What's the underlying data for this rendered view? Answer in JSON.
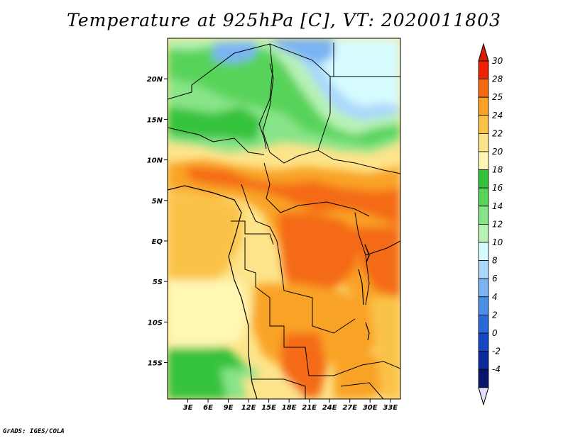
{
  "title": "Temperature at 925hPa [C], VT: 2020011803",
  "footer": "GrADS: IGES/COLA",
  "map": {
    "lat_ticks": [
      "20N",
      "15N",
      "10N",
      "5N",
      "EQ",
      "5S",
      "10S",
      "15S"
    ],
    "lat_values": [
      20,
      15,
      10,
      5,
      0,
      -5,
      -10,
      -15
    ],
    "lon_ticks": [
      "3E",
      "6E",
      "9E",
      "12E",
      "15E",
      "18E",
      "21E",
      "24E",
      "27E",
      "30E",
      "33E"
    ],
    "lon_values": [
      3,
      6,
      9,
      12,
      15,
      18,
      21,
      24,
      27,
      30,
      33
    ],
    "lon_range": [
      0,
      34.5
    ],
    "lat_range": [
      -19.5,
      25
    ]
  },
  "colorbar": {
    "labels": [
      "30",
      "28",
      "25",
      "24",
      "22",
      "20",
      "18",
      "16",
      "14",
      "12",
      "10",
      "8",
      "6",
      "4",
      "2",
      "0",
      "-2",
      "-4"
    ],
    "colors": [
      "#ee2200",
      "#f46a12",
      "#f9a326",
      "#fbc24a",
      "#fde48b",
      "#fff7b4",
      "#34c23c",
      "#59d35a",
      "#88e488",
      "#b8f2b5",
      "#d6fbff",
      "#abd8fb",
      "#7ab4f2",
      "#4c8fe6",
      "#2a6ad8",
      "#1448c4",
      "#0a2a9c",
      "#08156e"
    ]
  }
}
